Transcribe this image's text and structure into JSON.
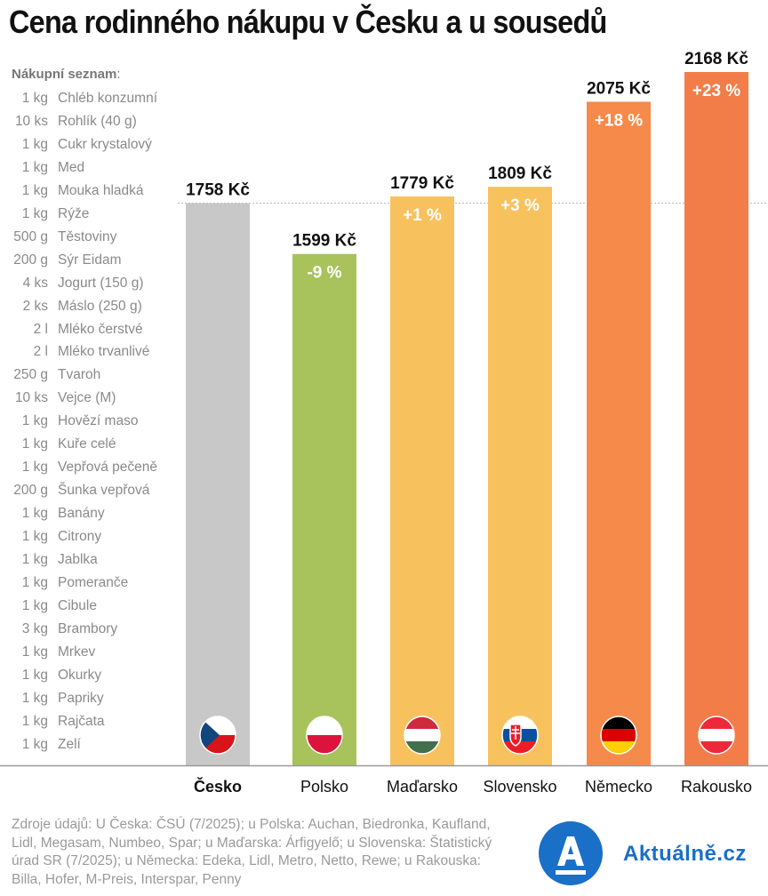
{
  "title": "Cena rodinného nákupu v Česku a u sousedů",
  "shopping_list": {
    "heading": "Nákupní seznam",
    "heading_suffix": ":",
    "items": [
      {
        "qty": "1 kg",
        "name": "Chléb konzumní"
      },
      {
        "qty": "10 ks",
        "name": "Rohlík (40 g)"
      },
      {
        "qty": "1 kg",
        "name": "Cukr krystalový"
      },
      {
        "qty": "1 kg",
        "name": "Med"
      },
      {
        "qty": "1 kg",
        "name": "Mouka hladká"
      },
      {
        "qty": "1 kg",
        "name": "Rýže"
      },
      {
        "qty": "500 g",
        "name": "Těstoviny"
      },
      {
        "qty": "200 g",
        "name": "Sýr Eidam"
      },
      {
        "qty": "4 ks",
        "name": "Jogurt (150 g)"
      },
      {
        "qty": "2 ks",
        "name": "Máslo (250 g)"
      },
      {
        "qty": "2 l",
        "name": "Mléko čerstvé"
      },
      {
        "qty": "2 l",
        "name": "Mléko trvanlivé"
      },
      {
        "qty": "250 g",
        "name": "Tvaroh"
      },
      {
        "qty": "10 ks",
        "name": "Vejce (M)"
      },
      {
        "qty": "1 kg",
        "name": "Hovězí maso"
      },
      {
        "qty": "1 kg",
        "name": "Kuře celé"
      },
      {
        "qty": "1 kg",
        "name": "Vepřová pečeně"
      },
      {
        "qty": "200 g",
        "name": "Šunka vepřová"
      },
      {
        "qty": "1 kg",
        "name": "Banány"
      },
      {
        "qty": "1 kg",
        "name": "Citrony"
      },
      {
        "qty": "1 kg",
        "name": "Jablka"
      },
      {
        "qty": "1 kg",
        "name": "Pomeranče"
      },
      {
        "qty": "1 kg",
        "name": "Cibule"
      },
      {
        "qty": "3 kg",
        "name": "Brambory"
      },
      {
        "qty": "1 kg",
        "name": "Mrkev"
      },
      {
        "qty": "1 kg",
        "name": "Okurky"
      },
      {
        "qty": "1 kg",
        "name": "Papriky"
      },
      {
        "qty": "1 kg",
        "name": "Rajčata"
      },
      {
        "qty": "1 kg",
        "name": "Zelí"
      }
    ]
  },
  "chart_data": {
    "type": "bar",
    "title": "Cena rodinného nákupu v Česku a u sousedů",
    "xlabel": "",
    "ylabel": "",
    "unit": "Kč",
    "ylim": [
      0,
      2168
    ],
    "grid": false,
    "reference_line": {
      "value": 1758,
      "style": "dotted",
      "label": "Česko"
    },
    "categories": [
      "Česko",
      "Polsko",
      "Maďarsko",
      "Slovensko",
      "Německo",
      "Rakousko"
    ],
    "values": [
      1758,
      1599,
      1779,
      1809,
      2075,
      2168
    ],
    "value_labels": [
      "1758 Kč",
      "1599 Kč",
      "1779 Kč",
      "1809 Kč",
      "2075 Kč",
      "2168 Kč"
    ],
    "diff_labels": [
      "",
      "-9 %",
      "+1 %",
      "+3 %",
      "+18 %",
      "+23 %"
    ],
    "colors": [
      "#c8c8c8",
      "#a8c25c",
      "#f7c25e",
      "#f7c25e",
      "#f58a4b",
      "#f27d49"
    ],
    "flags": [
      "czech-flag",
      "polish-flag",
      "hungarian-flag",
      "slovak-flag",
      "german-flag",
      "austrian-flag"
    ],
    "highlight_category": "Česko"
  },
  "sources": "Zdroje údajů: U Česka: ČSÚ (7/2025); u Polska: Auchan, Biedronka, Kaufland, Lidl, Megasam, Numbeo, Spar; u Maďarska: Árfigyelő; u Slovenska: Štatistický úrad SR (7/2025); u Německa: Edeka, Lidl, Metro, Netto, Rewe;  u Rakouska: Billa, Hofer, M-Preis,  Interspar, Penny",
  "logo": {
    "letter": "A",
    "text": "Aktuálně.cz",
    "color": "#1a6fc7"
  }
}
